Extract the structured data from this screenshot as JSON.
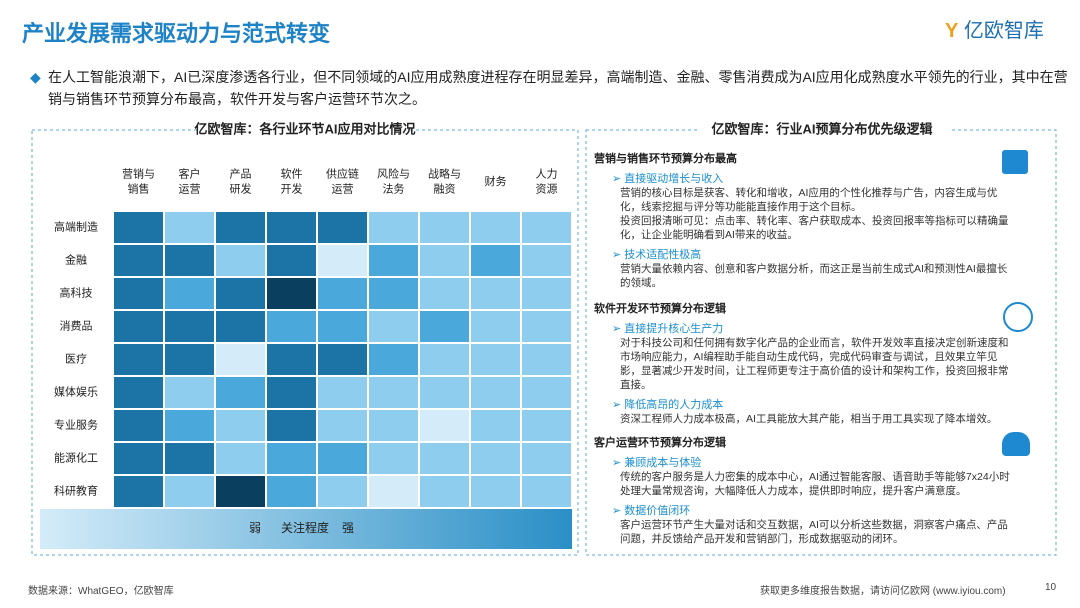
{
  "header": {
    "title": "产业发展需求驱动力与范式转变",
    "logo": "亿欧智库"
  },
  "intro": "在人工智能浪潮下，AI已深度渗透各行业，但不同领域的AI应用成熟度进程存在明显差异，高端制造、金融、零售消费成为AI应用化成熟度水平领先的行业，其中在营销与销售环节预算分布最高，软件开发与客户运营环节次之。",
  "chart_data": {
    "type": "heatmap",
    "title": "亿欧智库：各行业环节AI应用对比情况",
    "columns": [
      [
        "营销与",
        "销售"
      ],
      [
        "客户",
        "运营"
      ],
      [
        "产品",
        "研发"
      ],
      [
        "软件",
        "开发"
      ],
      [
        "供应链",
        "运营"
      ],
      [
        "风险与",
        "法务"
      ],
      [
        "战略与",
        "融资"
      ],
      [
        "财务"
      ],
      [
        "人力",
        "资源"
      ]
    ],
    "rows": [
      "高端制造",
      "金融",
      "高科技",
      "消费品",
      "医疗",
      "媒体娱乐",
      "专业服务",
      "能源化工",
      "科研教育"
    ],
    "values": [
      [
        4,
        2,
        4,
        4,
        4,
        2,
        2,
        2,
        2
      ],
      [
        4,
        4,
        2,
        4,
        1,
        3,
        2,
        3,
        2
      ],
      [
        4,
        3,
        4,
        5,
        3,
        3,
        2,
        2,
        2
      ],
      [
        4,
        4,
        4,
        3,
        3,
        2,
        3,
        2,
        2
      ],
      [
        4,
        4,
        1,
        4,
        4,
        3,
        2,
        2,
        2
      ],
      [
        4,
        2,
        3,
        4,
        2,
        2,
        2,
        2,
        2
      ],
      [
        4,
        3,
        2,
        4,
        2,
        2,
        1,
        2,
        2
      ],
      [
        4,
        4,
        2,
        3,
        3,
        2,
        2,
        2,
        2
      ],
      [
        4,
        2,
        5,
        3,
        2,
        1,
        2,
        2,
        2
      ]
    ],
    "colors": [
      "#d4ecf9",
      "#8fcdee",
      "#4aa8db",
      "#1c74a6",
      "#0b3f5f"
    ],
    "legend": {
      "low": "弱",
      "label": "关注程度",
      "high": "强"
    }
  },
  "panel": {
    "title": "亿欧智库：行业AI预算分布优先级逻辑",
    "sections": [
      {
        "title": "营销与销售环节预算分布最高",
        "items": [
          {
            "sub": "直接驱动增长与收入",
            "text": [
              "营销的核心目标是获客、转化和增收，AI应用的个性化推荐与广告，内容生成与优化，线索挖掘与评分等功能能直接作用于这个目标。",
              "投资回报清晰可见：点击率、转化率、客户获取成本、投资回报率等指标可以精确量化，让企业能明确看到AI带来的收益。"
            ]
          },
          {
            "sub": "技术适配性极高",
            "text": [
              "营销大量依赖内容、创意和客户数据分析，而这正是当前生成式AI和预测性AI最擅长的领域。"
            ]
          }
        ]
      },
      {
        "title": "软件开发环节预算分布逻辑",
        "items": [
          {
            "sub": "直接提升核心生产力",
            "text": [
              "对于科技公司和任何拥有数字化产品的企业而言，软件开发效率直接决定创新速度和市场响应能力，AI编程助手能自动生成代码，完成代码审查与调试，且效果立竿见影，显著减少开发时间，让工程师更专注于高价值的设计和架构工作，投资回报非常直接。"
            ]
          },
          {
            "sub": "降低高昂的人力成本",
            "text": [
              "资深工程师人力成本极高，AI工具能放大其产能，相当于用工具实现了降本增效。"
            ]
          }
        ]
      },
      {
        "title": "客户运营环节预算分布逻辑",
        "items": [
          {
            "sub": "兼顾成本与体验",
            "text": [
              "传统的客户服务是人力密集的成本中心，AI通过智能客服、语音助手等能够7x24小时处理大量常规咨询，大幅降低人力成本，提供即时响应，提升客户满意度。"
            ]
          },
          {
            "sub": "数据价值闭环",
            "text": [
              "客户运营环节产生大量对话和交互数据，AI可以分析这些数据，洞察客户痛点、产品问题，并反馈给产品开发和营销部门，形成数据驱动的闭环。"
            ]
          }
        ]
      }
    ]
  },
  "footer": {
    "source": "数据来源：WhatGEO，亿欧智库",
    "more": "获取更多维度报告数据，请访问亿欧网 (www.iyiou.com)",
    "page": "10"
  }
}
